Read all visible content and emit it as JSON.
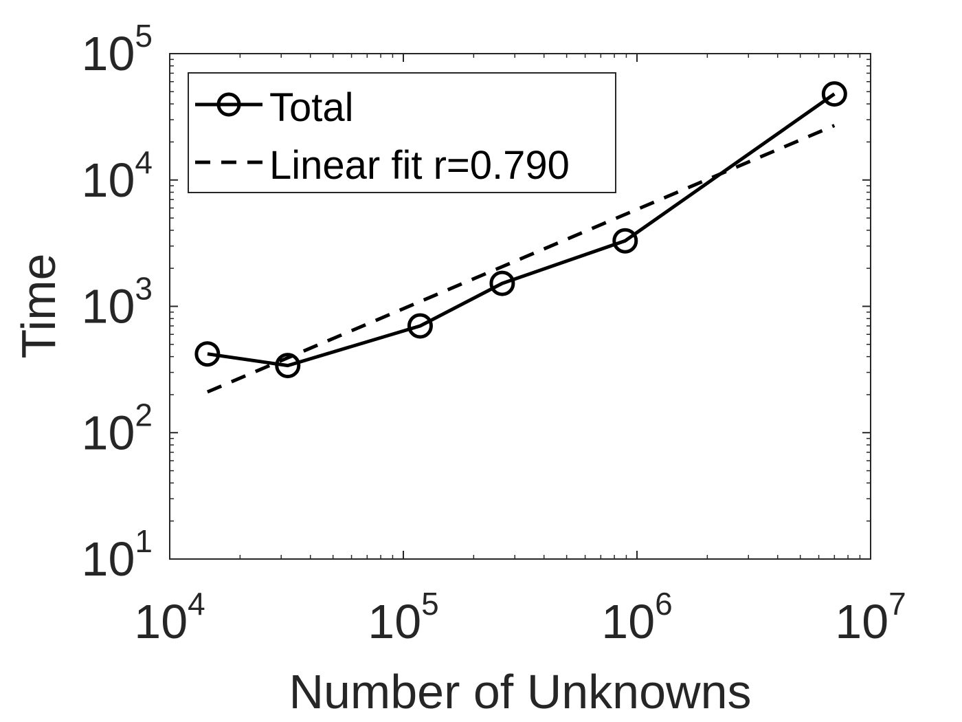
{
  "chart_data": {
    "type": "line",
    "xlabel": "Number of Unknowns",
    "ylabel": "Time",
    "x_scale": "log",
    "y_scale": "log",
    "xlim": [
      10000,
      10000000
    ],
    "ylim": [
      10,
      100000
    ],
    "x_ticks": [
      {
        "value": 10000,
        "base": "10",
        "exp": "4"
      },
      {
        "value": 100000,
        "base": "10",
        "exp": "5"
      },
      {
        "value": 1000000,
        "base": "10",
        "exp": "6"
      },
      {
        "value": 10000000,
        "base": "10",
        "exp": "7"
      }
    ],
    "y_ticks": [
      {
        "value": 10,
        "base": "10",
        "exp": "1"
      },
      {
        "value": 100,
        "base": "10",
        "exp": "2"
      },
      {
        "value": 1000,
        "base": "10",
        "exp": "3"
      },
      {
        "value": 10000,
        "base": "10",
        "exp": "4"
      },
      {
        "value": 100000,
        "base": "10",
        "exp": "5"
      }
    ],
    "grid": false,
    "legend_position": "top-left",
    "series": [
      {
        "name": "Total",
        "style": "solid",
        "marker": "circle",
        "color": "#000000",
        "x": [
          14500,
          32000,
          118000,
          265000,
          890000,
          7000000
        ],
        "y": [
          420,
          340,
          700,
          1520,
          3300,
          48000
        ]
      },
      {
        "name": "Linear fit r=0.790",
        "style": "dashed",
        "marker": "none",
        "color": "#000000",
        "x": [
          14500,
          7000000
        ],
        "y": [
          210,
          27000
        ]
      }
    ]
  }
}
